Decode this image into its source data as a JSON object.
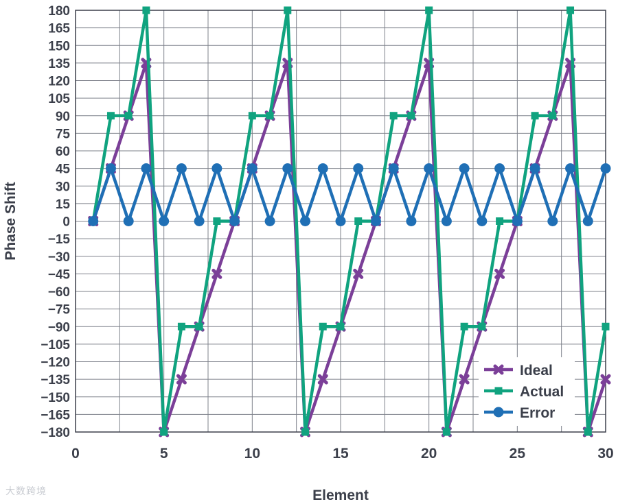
{
  "chart_data": {
    "type": "line",
    "title": "",
    "xlabel": "Element",
    "ylabel": "Phase Shift",
    "xlim": [
      0,
      30
    ],
    "ylim": [
      -180,
      180
    ],
    "xticks": [
      0,
      5,
      10,
      15,
      20,
      25,
      30
    ],
    "yticks": [
      180,
      165,
      150,
      135,
      120,
      105,
      90,
      75,
      60,
      45,
      30,
      15,
      0,
      -15,
      -30,
      -45,
      -60,
      -75,
      -90,
      -105,
      -120,
      -135,
      -150,
      -165,
      -180
    ],
    "grid": true,
    "legend": "bottom-right",
    "series": [
      {
        "name": "Ideal",
        "color": "#7b3f98",
        "marker": "x",
        "x": [
          1,
          2,
          3,
          4,
          5,
          6,
          7,
          8,
          9,
          10,
          11,
          12,
          13,
          14,
          15,
          16,
          17,
          18,
          19,
          20,
          21,
          22,
          23,
          24,
          25,
          26,
          27,
          28,
          29,
          30
        ],
        "y": [
          0,
          45,
          90,
          135,
          -180,
          -135,
          -90,
          -45,
          0,
          45,
          90,
          135,
          -180,
          -135,
          -90,
          -45,
          0,
          45,
          90,
          135,
          -180,
          -135,
          -90,
          -45,
          0,
          45,
          90,
          135,
          -180,
          -135
        ]
      },
      {
        "name": "Actual",
        "color": "#10a37f",
        "marker": "square",
        "x": [
          1,
          2,
          3,
          4,
          5,
          6,
          7,
          8,
          9,
          10,
          11,
          12,
          13,
          14,
          15,
          16,
          17,
          18,
          19,
          20,
          21,
          22,
          23,
          24,
          25,
          26,
          27,
          28,
          29,
          30
        ],
        "y": [
          0,
          90,
          90,
          180,
          -180,
          -90,
          -90,
          0,
          0,
          90,
          90,
          180,
          -180,
          -90,
          -90,
          0,
          0,
          90,
          90,
          180,
          -180,
          -90,
          -90,
          0,
          0,
          90,
          90,
          180,
          -180,
          -90
        ]
      },
      {
        "name": "Error",
        "color": "#1f6fb5",
        "marker": "circle",
        "x": [
          1,
          2,
          3,
          4,
          5,
          6,
          7,
          8,
          9,
          10,
          11,
          12,
          13,
          14,
          15,
          16,
          17,
          18,
          19,
          20,
          21,
          22,
          23,
          24,
          25,
          26,
          27,
          28,
          29,
          30
        ],
        "y": [
          0,
          45,
          0,
          45,
          0,
          45,
          0,
          45,
          0,
          45,
          0,
          45,
          0,
          45,
          0,
          45,
          0,
          45,
          0,
          45,
          0,
          45,
          0,
          45,
          0,
          45,
          0,
          45,
          0,
          45
        ]
      }
    ]
  },
  "watermark": "大数跨境"
}
